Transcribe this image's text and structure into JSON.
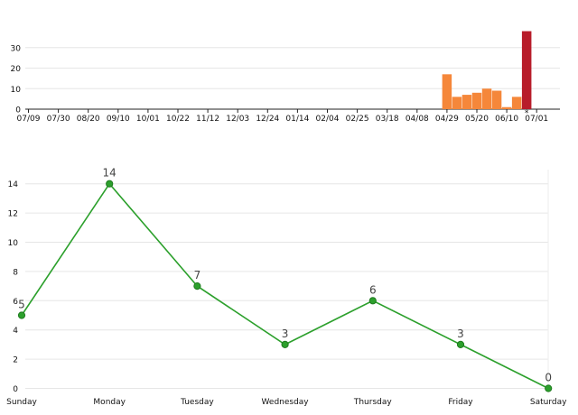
{
  "chart_data": [
    {
      "type": "bar",
      "title": "",
      "xlabel": "",
      "ylabel": "",
      "ylim": [
        0,
        40
      ],
      "y_ticks": [
        "0",
        "10",
        "20",
        "30"
      ],
      "x_tick_labels": [
        "07/09",
        "07/30",
        "08/20",
        "09/10",
        "10/01",
        "10/22",
        "11/12",
        "12/03",
        "12/24",
        "01/14",
        "02/04",
        "02/25",
        "03/18",
        "04/08",
        "04/29",
        "05/20",
        "06/10",
        "07/01"
      ],
      "bars": [
        {
          "week": "05/06",
          "value": 17
        },
        {
          "week": "05/13",
          "value": 6
        },
        {
          "week": "05/20",
          "value": 7
        },
        {
          "week": "05/27",
          "value": 8
        },
        {
          "week": "06/03",
          "value": 10
        },
        {
          "week": "06/10",
          "value": 9
        },
        {
          "week": "06/17",
          "value": 1
        },
        {
          "week": "06/24",
          "value": 6
        },
        {
          "week": "07/01",
          "value": 38,
          "highlight": true
        }
      ],
      "colors": {
        "bar": "#f5873a",
        "highlight": "#b81c2a"
      },
      "current_marker": "*"
    },
    {
      "type": "line",
      "title": "",
      "xlabel": "",
      "ylabel": "",
      "categories": [
        "Sunday",
        "Monday",
        "Tuesday",
        "Wednesday",
        "Thursday",
        "Friday",
        "Saturday"
      ],
      "values": [
        5,
        14,
        7,
        3,
        6,
        3,
        0
      ],
      "data_labels": [
        "5",
        "14",
        "7",
        "3",
        "6",
        "3",
        "0"
      ],
      "ylim": [
        0,
        15
      ],
      "y_ticks": [
        "0",
        "2",
        "4",
        "6",
        "8",
        "10",
        "12",
        "14"
      ],
      "grid": true,
      "colors": {
        "line": "#2ca02c",
        "marker": "#2ca02c"
      }
    }
  ]
}
